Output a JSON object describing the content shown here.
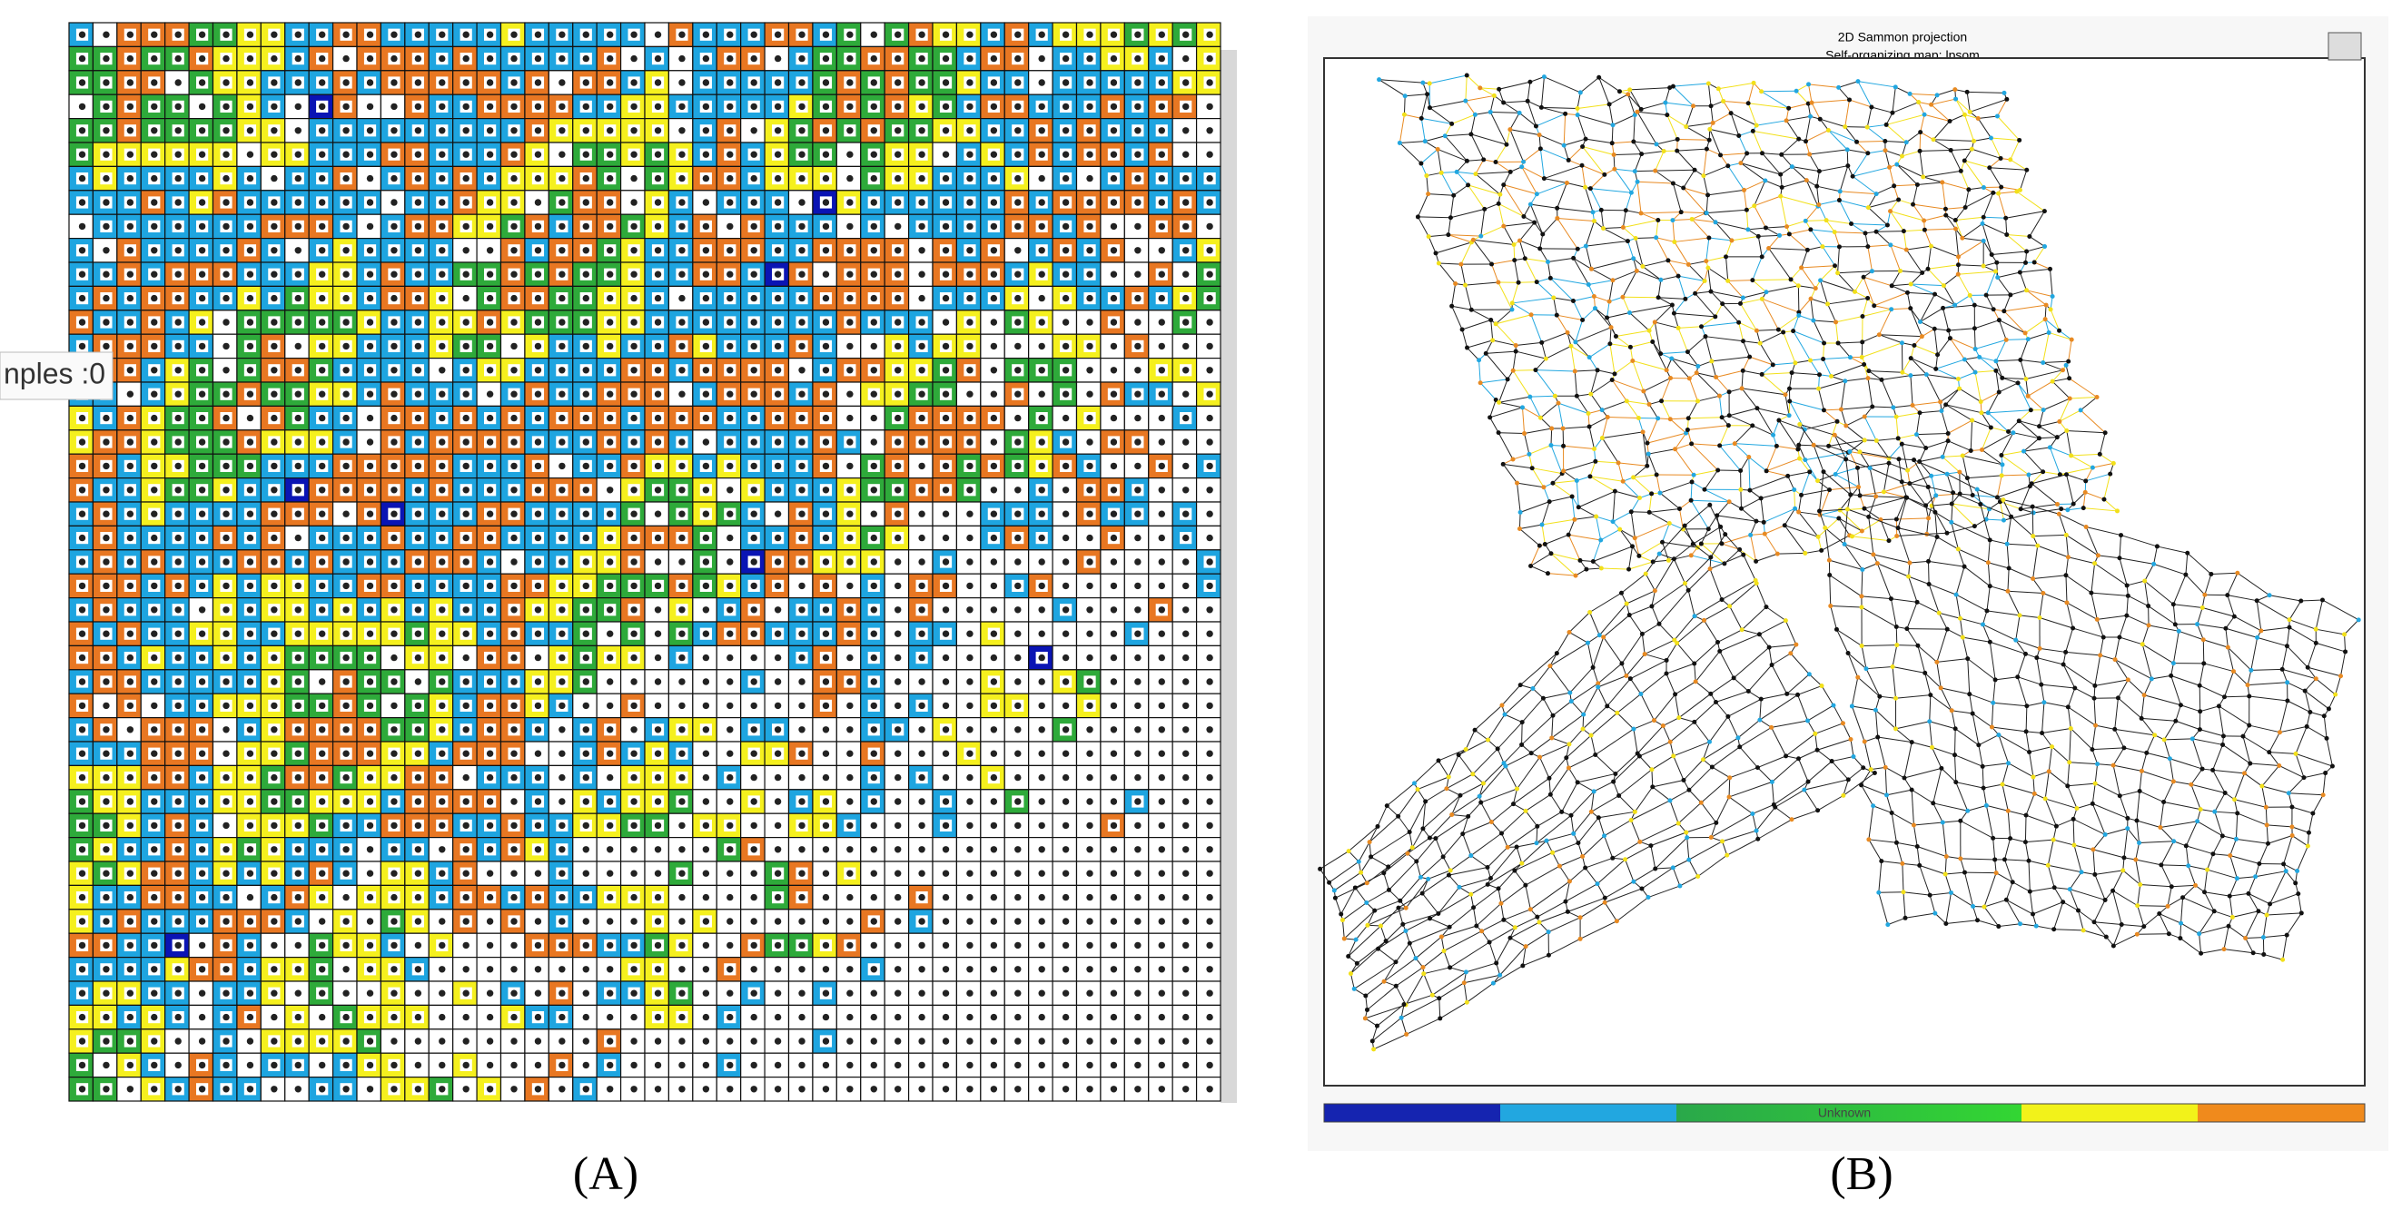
{
  "panel_a": {
    "tooltip": "nples :0",
    "label": "(A)"
  },
  "panel_b": {
    "title": "2D Sammon projection",
    "subtitle": "Self-organizing map: lpsom",
    "colorbar_label": "Unknown",
    "label": "(B)"
  }
}
